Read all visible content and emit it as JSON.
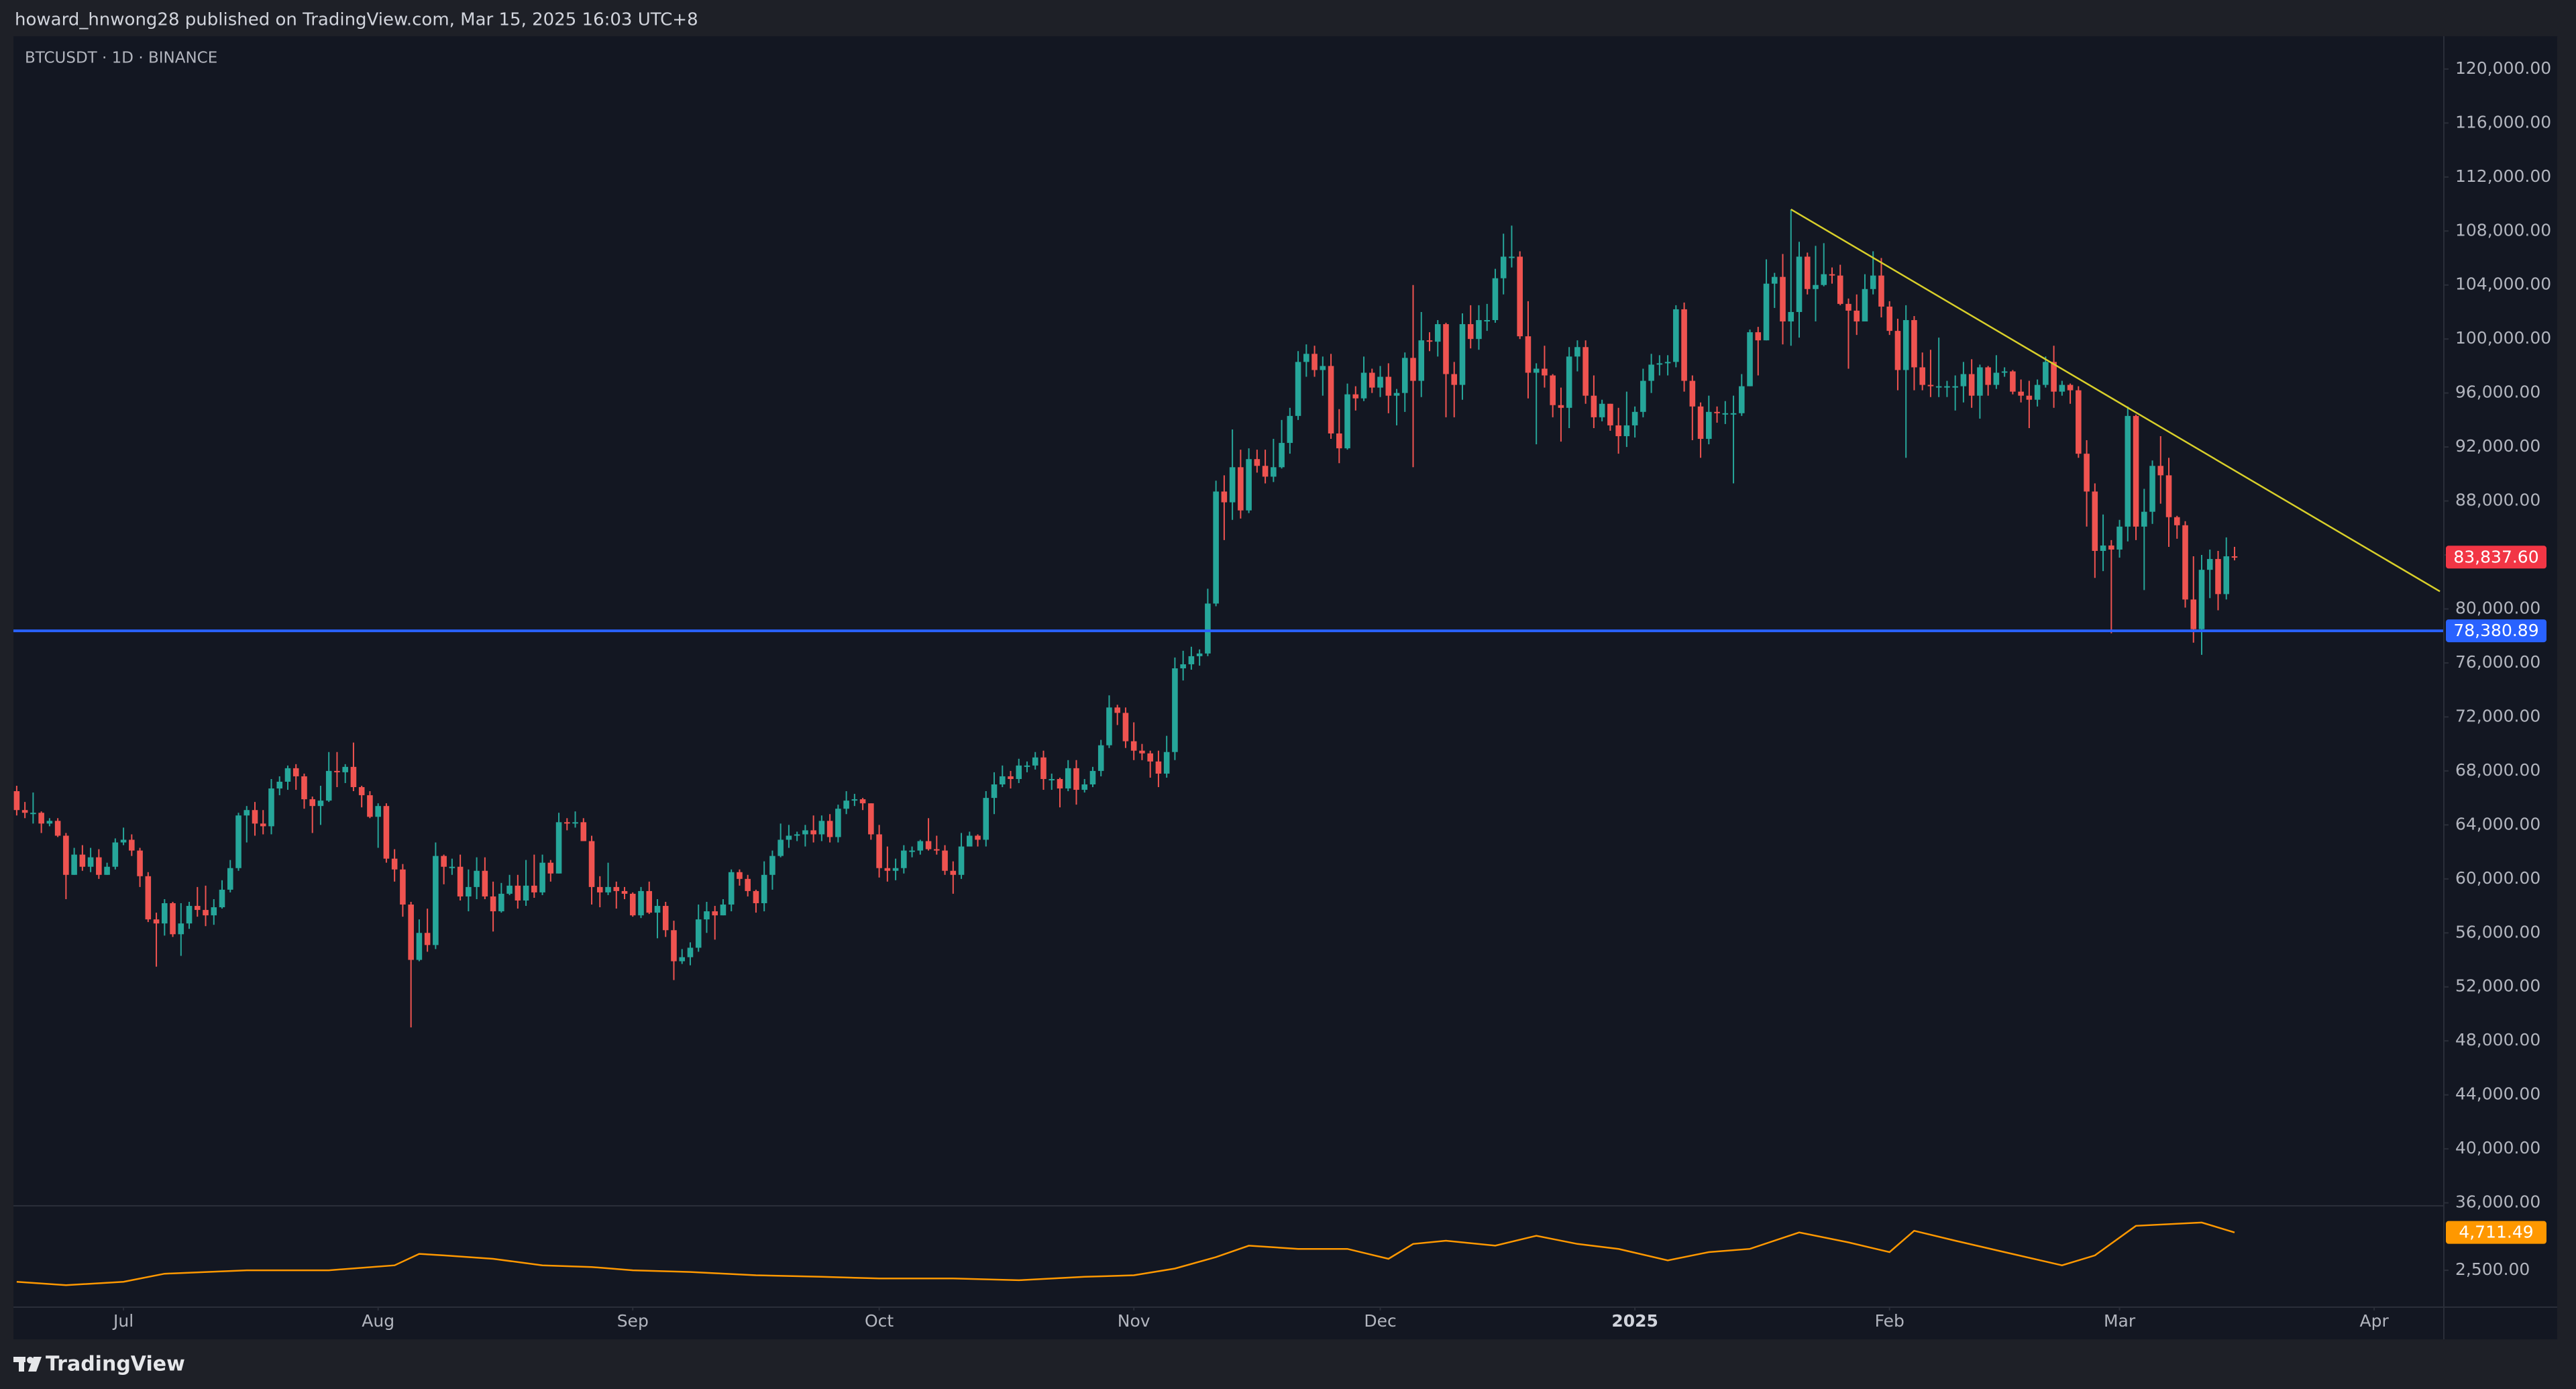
{
  "header": {
    "text": "howard_hnwong28 published on TradingView.com, Mar 15, 2025 16:03 UTC+8"
  },
  "footer": {
    "brand": "TradingView"
  },
  "chart_data": {
    "type": "candlestick",
    "title": "BTCUSDT · 1D · BINANCE",
    "up_color": "#26a69a",
    "down_color": "#ef5350",
    "grid": false,
    "open": [
      66500,
      65100,
      64900,
      64900,
      64100,
      64300,
      63200,
      60300,
      61800,
      60900,
      61600,
      60300,
      60900,
      62700,
      62900,
      62100,
      60200,
      57000,
      56700,
      58200,
      55900,
      56700,
      58000,
      57700,
      57300,
      57900,
      59200,
      60800,
      64700,
      65100,
      64100,
      63900,
      66700,
      67200,
      68200,
      67600,
      65900,
      65400,
      65800,
      68000,
      67900,
      68300,
      66800,
      66200,
      64600,
      65400,
      61500,
      60700,
      58100,
      54000,
      56000,
      55100,
      61700,
      60900,
      60900,
      58700,
      59400,
      60600,
      58700,
      57600,
      58900,
      59500,
      58400,
      59500,
      59000,
      61200,
      60400,
      64200,
      64100,
      64200,
      62800,
      59400,
      59000,
      59400,
      59100,
      58900,
      57300,
      59100,
      57500,
      58000,
      56200,
      53900,
      54200,
      54900,
      57000,
      57600,
      57300,
      58100,
      60500,
      60000,
      59100,
      58200,
      60300,
      61700,
      62900,
      63200,
      63300,
      63600,
      63300,
      64300,
      63100,
      65200,
      65800,
      65900,
      65600,
      63300,
      60800,
      60600,
      60800,
      62100,
      62100,
      62800,
      62200,
      62100,
      60600,
      60300,
      62400,
      63200,
      62900,
      66000,
      67000,
      67600,
      67400,
      68400,
      68400,
      69000,
      67400,
      67400,
      66700,
      68200,
      66600,
      67000,
      68000,
      69900,
      72700,
      72300,
      70200,
      69500,
      69300,
      68700,
      67800,
      69400,
      75600,
      75900,
      76500,
      76700,
      80400,
      88700,
      87900,
      90500,
      87300,
      91100,
      90600,
      89800,
      90500,
      92300,
      94300,
      98300,
      98900,
      97700,
      98000,
      93000,
      91900,
      95900,
      95600,
      97500,
      96400,
      97200,
      95800,
      96000,
      98600,
      96900,
      99900,
      99800,
      101100,
      97400,
      96600,
      101100,
      100000,
      101400,
      101400,
      104500,
      106100,
      106100,
      100200,
      97500,
      97800,
      97300,
      95100,
      94900,
      98700,
      99400,
      95800,
      94200,
      95200,
      93600,
      92800,
      93600,
      94600,
      96900,
      98100,
      98200,
      98300,
      102200,
      96900,
      95000,
      92600,
      94600,
      94500,
      94500,
      94500,
      96500,
      100500,
      99900,
      104100,
      104600,
      101300,
      102000,
      106100,
      103700,
      104000,
      104800,
      104700,
      102600,
      102100,
      101300,
      103700,
      104700,
      102400,
      100600,
      97700,
      101400,
      97900,
      96600,
      96500,
      96500,
      96500,
      96500,
      97400,
      95800,
      97900,
      96600,
      97500,
      97600,
      96100,
      95800,
      95500,
      96600,
      98300,
      96100,
      96600,
      96200,
      91500,
      88700,
      84300,
      84700,
      84400,
      86100,
      94300,
      86100,
      87200,
      90600,
      89900,
      86800,
      86200,
      80700,
      78500,
      82900,
      83700,
      81100,
      83900
    ],
    "high": [
      66900,
      65700,
      66400,
      65000,
      64500,
      64500,
      63400,
      62300,
      62500,
      62300,
      62200,
      61200,
      63000,
      63800,
      63300,
      62300,
      60500,
      57500,
      58500,
      58300,
      58200,
      58300,
      59400,
      59500,
      58500,
      59900,
      61400,
      64900,
      65400,
      65700,
      65100,
      67400,
      67600,
      68400,
      68500,
      67800,
      66100,
      66900,
      69400,
      69400,
      68500,
      70100,
      66900,
      66500,
      65600,
      65600,
      62200,
      61100,
      58300,
      57000,
      57800,
      62700,
      61800,
      61500,
      61800,
      60700,
      61600,
      61600,
      59800,
      59700,
      60300,
      60300,
      61400,
      61800,
      61800,
      61400,
      64900,
      64500,
      65000,
      64500,
      63200,
      60200,
      61200,
      59800,
      59400,
      59000,
      59400,
      59800,
      58500,
      58300,
      56900,
      54800,
      55300,
      58100,
      58300,
      58000,
      58500,
      60700,
      60700,
      60300,
      59200,
      61300,
      62100,
      64100,
      64000,
      63500,
      64000,
      64700,
      64700,
      64800,
      65500,
      66500,
      66300,
      66000,
      65600,
      64000,
      62400,
      61500,
      62500,
      62400,
      62900,
      64500,
      63200,
      62500,
      61300,
      63400,
      63500,
      63300,
      66500,
      67900,
      68400,
      68000,
      68900,
      68700,
      69400,
      69500,
      67800,
      67500,
      68800,
      68800,
      67400,
      68300,
      70300,
      73600,
      72900,
      72700,
      71600,
      70000,
      69500,
      69500,
      70600,
      76400,
      76900,
      77200,
      77000,
      81500,
      89500,
      89900,
      93300,
      91800,
      91900,
      91800,
      91800,
      92600,
      94000,
      94900,
      99100,
      99600,
      99500,
      98700,
      98900,
      94800,
      96700,
      96500,
      98700,
      97800,
      98000,
      98200,
      96300,
      99000,
      104000,
      102000,
      100500,
      101400,
      101200,
      98300,
      101900,
      102500,
      102500,
      102600,
      105200,
      107800,
      108400,
      106500,
      102800,
      98200,
      99500,
      97400,
      96400,
      99400,
      99900,
      99900,
      97300,
      95500,
      95200,
      94900,
      96100,
      95000,
      97800,
      98900,
      98800,
      98800,
      102500,
      102700,
      97300,
      95300,
      95800,
      95000,
      95400,
      95800,
      97400,
      100700,
      100900,
      105900,
      104900,
      106300,
      109600,
      107200,
      106400,
      106900,
      107100,
      105300,
      105500,
      103000,
      103300,
      104800,
      106500,
      106000,
      102800,
      101500,
      102500,
      101700,
      99000,
      99200,
      100100,
      96900,
      97300,
      98300,
      98500,
      98100,
      98000,
      98800,
      97900,
      97700,
      97000,
      96900,
      97000,
      98700,
      99500,
      96900,
      96700,
      96500,
      92500,
      89300,
      87000,
      85100,
      86600,
      95000,
      94400,
      88900,
      91000,
      92800,
      91200,
      86900,
      86500,
      83900,
      84000,
      84400,
      84300,
      85300,
      84600
    ],
    "low": [
      64700,
      64500,
      64100,
      63400,
      63900,
      63100,
      58500,
      60300,
      60600,
      60500,
      60000,
      60300,
      60700,
      62500,
      61700,
      59400,
      56800,
      53500,
      55800,
      55700,
      54300,
      56300,
      57200,
      56500,
      56600,
      57800,
      59000,
      60600,
      62700,
      63200,
      63300,
      63300,
      66200,
      66600,
      66600,
      65200,
      63400,
      64000,
      65700,
      66800,
      67100,
      66500,
      65300,
      64500,
      62300,
      61200,
      59800,
      57200,
      49000,
      53900,
      54600,
      54800,
      59600,
      60300,
      58400,
      57600,
      58500,
      58500,
      56100,
      57500,
      58800,
      57800,
      58000,
      58600,
      58800,
      59800,
      60400,
      63600,
      63800,
      62800,
      58100,
      57900,
      58800,
      57800,
      58500,
      57200,
      57100,
      57400,
      55600,
      55700,
      52500,
      53700,
      53600,
      54600,
      56000,
      55500,
      57300,
      57600,
      59500,
      58700,
      57500,
      57600,
      59200,
      61600,
      62300,
      62800,
      62400,
      62700,
      62800,
      62700,
      62700,
      64800,
      65400,
      65100,
      62900,
      60100,
      59800,
      59900,
      60400,
      61600,
      61800,
      62100,
      61800,
      60300,
      58900,
      60000,
      62400,
      62400,
      62400,
      64800,
      66800,
      66700,
      67100,
      67900,
      68100,
      66600,
      66600,
      65300,
      66500,
      65500,
      66400,
      66800,
      67600,
      69700,
      71400,
      69700,
      68800,
      68800,
      67500,
      66800,
      67500,
      68800,
      74700,
      75500,
      75800,
      76500,
      80200,
      85100,
      86600,
      86700,
      87100,
      90100,
      89300,
      89400,
      90400,
      91500,
      94000,
      97200,
      97200,
      95800,
      92600,
      90800,
      91800,
      94700,
      95400,
      96000,
      95700,
      94500,
      93600,
      94600,
      90500,
      95700,
      99100,
      98700,
      94200,
      94200,
      95500,
      99300,
      99200,
      100600,
      101200,
      103300,
      105300,
      100000,
      95600,
      92200,
      96400,
      94200,
      92400,
      93400,
      97600,
      95200,
      93400,
      93900,
      93200,
      91500,
      92000,
      92700,
      94200,
      96000,
      97300,
      97300,
      97900,
      96100,
      92500,
      91200,
      92200,
      93800,
      93700,
      89300,
      94300,
      96500,
      97300,
      99900,
      102300,
      99600,
      99500,
      100100,
      103300,
      101300,
      103900,
      104100,
      102500,
      97800,
      100300,
      101300,
      103300,
      101600,
      100300,
      96200,
      91200,
      96200,
      96200,
      95700,
      95700,
      95700,
      94700,
      95300,
      94900,
      94100,
      95800,
      96300,
      97200,
      95900,
      95300,
      93400,
      95000,
      96400,
      94900,
      95800,
      95200,
      91200,
      86100,
      82300,
      82800,
      78200,
      83800,
      85000,
      85100,
      81400,
      86300,
      87800,
      84600,
      85200,
      80100,
      77500,
      76600,
      80800,
      79900,
      80700,
      83600
    ],
    "close": [
      65100,
      64900,
      64900,
      64100,
      64300,
      63200,
      60300,
      61800,
      60900,
      61600,
      60300,
      60900,
      62700,
      62900,
      62100,
      60200,
      57000,
      56700,
      58200,
      55900,
      56700,
      58000,
      57700,
      57300,
      57900,
      59200,
      60800,
      64700,
      65100,
      64100,
      63900,
      66700,
      67200,
      68200,
      67600,
      65900,
      65400,
      65800,
      68000,
      67900,
      68300,
      66800,
      66200,
      64600,
      65400,
      61500,
      60700,
      58100,
      54000,
      56000,
      55100,
      61700,
      60900,
      60900,
      58700,
      59400,
      60600,
      58700,
      57600,
      58900,
      59500,
      58400,
      59500,
      59000,
      61200,
      60400,
      64200,
      64100,
      64200,
      62800,
      59400,
      59000,
      59400,
      59100,
      58900,
      57300,
      59100,
      57500,
      58000,
      56200,
      53900,
      54200,
      54900,
      57000,
      57600,
      57300,
      58100,
      60500,
      60000,
      59100,
      58200,
      60300,
      61700,
      62900,
      63200,
      63300,
      63600,
      63300,
      64300,
      63100,
      65200,
      65800,
      65900,
      65600,
      63300,
      60800,
      60600,
      60800,
      62100,
      62100,
      62800,
      62200,
      62100,
      60600,
      60300,
      62400,
      63200,
      62900,
      66000,
      67000,
      67600,
      67400,
      68400,
      68400,
      69000,
      67400,
      67400,
      66700,
      68200,
      66600,
      67000,
      68000,
      69900,
      72700,
      72300,
      70200,
      69500,
      69300,
      68700,
      67800,
      69400,
      75600,
      75900,
      76500,
      76700,
      80400,
      88700,
      87900,
      90500,
      87300,
      91100,
      90600,
      89800,
      90500,
      92300,
      94300,
      98300,
      98900,
      97700,
      98000,
      93000,
      91900,
      95900,
      95600,
      97500,
      96400,
      97200,
      95800,
      96000,
      98600,
      96900,
      99900,
      99800,
      101100,
      97400,
      96600,
      101100,
      100000,
      101400,
      101400,
      104500,
      106100,
      106100,
      100200,
      97500,
      97800,
      97300,
      95100,
      94900,
      98700,
      99400,
      95800,
      94200,
      95200,
      93600,
      92800,
      93600,
      94600,
      96900,
      98100,
      98200,
      98300,
      102200,
      96900,
      95000,
      92600,
      94600,
      94500,
      94500,
      94500,
      96500,
      100500,
      99900,
      104100,
      104600,
      101300,
      102000,
      106100,
      103700,
      104000,
      104800,
      104700,
      102600,
      102100,
      101300,
      103700,
      104700,
      102400,
      100600,
      97700,
      101400,
      97900,
      96600,
      96500,
      96500,
      96500,
      96500,
      97400,
      95800,
      97900,
      96600,
      97500,
      97600,
      96100,
      95800,
      95500,
      96600,
      98300,
      96100,
      96600,
      96200,
      91500,
      88700,
      84300,
      84700,
      84400,
      86100,
      94300,
      86100,
      87200,
      90600,
      89900,
      86800,
      86200,
      80700,
      78500,
      82900,
      83700,
      81100,
      83900,
      83837.6
    ],
    "xlim": [
      -0.4,
      295.4
    ],
    "xticks": [
      {
        "value": 13,
        "label": "Jul"
      },
      {
        "value": 44,
        "label": "Aug"
      },
      {
        "value": 75,
        "label": "Sep"
      },
      {
        "value": 105,
        "label": "Oct"
      },
      {
        "value": 136,
        "label": "Nov"
      },
      {
        "value": 166,
        "label": "Dec"
      },
      {
        "value": 197,
        "label": "2025"
      },
      {
        "value": 228,
        "label": "Feb"
      },
      {
        "value": 256,
        "label": "Mar"
      },
      {
        "value": 287,
        "label": "Apr"
      }
    ],
    "ylim": [
      35880,
      122430
    ],
    "yticks": [
      {
        "value": 36000,
        "label": "36,000.00"
      },
      {
        "value": 40000,
        "label": "40,000.00"
      },
      {
        "value": 44000,
        "label": "44,000.00"
      },
      {
        "value": 48000,
        "label": "48,000.00"
      },
      {
        "value": 52000,
        "label": "52,000.00"
      },
      {
        "value": 56000,
        "label": "56,000.00"
      },
      {
        "value": 60000,
        "label": "60,000.00"
      },
      {
        "value": 64000,
        "label": "64,000.00"
      },
      {
        "value": 68000,
        "label": "68,000.00"
      },
      {
        "value": 72000,
        "label": "72,000.00"
      },
      {
        "value": 76000,
        "label": "76,000.00"
      },
      {
        "value": 80000,
        "label": "80,000.00"
      },
      {
        "value": 84000,
        "label": "84,000.00"
      },
      {
        "value": 88000,
        "label": "88,000.00"
      },
      {
        "value": 92000,
        "label": "92,000.00"
      },
      {
        "value": 96000,
        "label": "96,000.00"
      },
      {
        "value": 100000,
        "label": "100,000.00"
      },
      {
        "value": 104000,
        "label": "104,000.00"
      },
      {
        "value": 108000,
        "label": "108,000.00"
      },
      {
        "value": 112000,
        "label": "112,000.00"
      },
      {
        "value": 116000,
        "label": "116,000.00"
      },
      {
        "value": 120000,
        "label": "120,000.00"
      }
    ],
    "price_line": {
      "value": 78380.89,
      "label": "78,380.89",
      "color": "#2962ff"
    },
    "last_price": {
      "value": 83837.6,
      "label": "83,837.60",
      "color": "#f23645"
    },
    "trendline": {
      "x": [
        216,
        295
      ],
      "y": [
        109600,
        81300
      ],
      "color": "#d8cf2a"
    },
    "indicator": {
      "type": "line",
      "color": "#ff9800",
      "x": [
        0,
        6,
        13,
        18,
        28,
        38,
        46,
        49,
        52,
        58,
        64,
        70,
        75,
        82,
        90,
        98,
        105,
        114,
        122,
        130,
        136,
        141,
        146,
        150,
        156,
        162,
        167,
        170,
        174,
        180,
        185,
        190,
        195,
        201,
        206,
        211,
        217,
        223,
        228,
        231,
        236,
        242,
        249,
        253,
        258,
        266,
        270
      ],
      "values": [
        1830,
        1630,
        1830,
        2300,
        2500,
        2500,
        2790,
        3460,
        3370,
        3170,
        2790,
        2690,
        2500,
        2400,
        2210,
        2120,
        2020,
        2020,
        1920,
        2120,
        2210,
        2600,
        3270,
        3940,
        3750,
        3750,
        3170,
        4040,
        4230,
        3940,
        4520,
        4040,
        3750,
        3080,
        3560,
        3750,
        4710,
        4130,
        3560,
        4810,
        4230,
        3560,
        2790,
        3370,
        5100,
        5290,
        4711.49
      ],
      "ylim": [
        385,
        6150
      ],
      "yticks": [
        {
          "value": 2500,
          "label": "2,500.00"
        }
      ],
      "last": {
        "value": 4711.49,
        "label": "4,711.49"
      }
    }
  }
}
